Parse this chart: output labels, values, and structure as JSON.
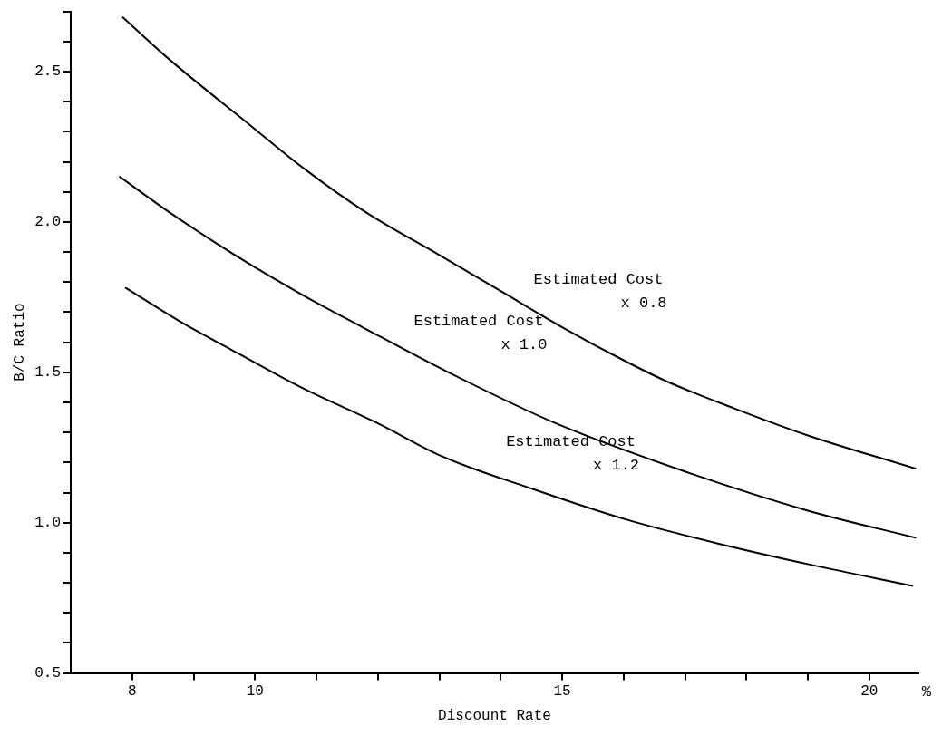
{
  "chart_data": {
    "type": "line",
    "xlabel": "Discount Rate",
    "ylabel": "B/C Ratio",
    "xlim": [
      7,
      20.8
    ],
    "ylim": [
      0.5,
      2.7
    ],
    "xticks": [
      8,
      {
        "value": 9,
        "label": null
      },
      10,
      {
        "value": 11,
        "label": null
      },
      {
        "value": 12,
        "label": null
      },
      {
        "value": 13,
        "label": null
      },
      {
        "value": 14,
        "label": null
      },
      15,
      {
        "value": 16,
        "label": null
      },
      {
        "value": 17,
        "label": null
      },
      {
        "value": 18,
        "label": null
      },
      {
        "value": 19,
        "label": null
      },
      20
    ],
    "yticks": [
      0.5,
      {
        "value": 0.6,
        "label": null
      },
      {
        "value": 0.7,
        "label": null
      },
      {
        "value": 0.8,
        "label": null
      },
      {
        "value": 0.9,
        "label": null
      },
      {
        "value": 1,
        "label": "1.0"
      },
      {
        "value": 1.1,
        "label": null
      },
      {
        "value": 1.2,
        "label": null
      },
      {
        "value": 1.3,
        "label": null
      },
      {
        "value": 1.4,
        "label": null
      },
      1.5,
      {
        "value": 1.6,
        "label": null
      },
      {
        "value": 1.7,
        "label": null
      },
      {
        "value": 1.8,
        "label": null
      },
      {
        "value": 1.9,
        "label": null
      },
      {
        "value": 2,
        "label": "2.0"
      },
      {
        "value": 2.1,
        "label": null
      },
      {
        "value": 2.2,
        "label": null
      },
      {
        "value": 2.3,
        "label": null
      },
      {
        "value": 2.4,
        "label": null
      },
      2.5,
      {
        "value": 2.6,
        "label": null
      },
      {
        "value": 2.7,
        "label": null
      }
    ],
    "grid": false,
    "legend": false,
    "marker": "none",
    "line_style": "solid",
    "series": [
      {
        "name": "Estimated Cost x 0.8",
        "color": "#000000",
        "x": [
          7.85,
          8.55,
          9.93,
          10.78,
          11.82,
          13.0,
          14.0,
          15.0,
          16.0,
          16.7,
          17.8,
          19.0,
          20.75
        ],
        "values": [
          2.68,
          2.55,
          2.32,
          2.18,
          2.03,
          1.89,
          1.77,
          1.65,
          1.54,
          1.47,
          1.38,
          1.29,
          1.18
        ]
      },
      {
        "name": "Estimated Cost x 1.0",
        "color": "#000000",
        "x": [
          7.8,
          8.55,
          9.75,
          10.75,
          11.75,
          13.05,
          14.9,
          17.0,
          19.0,
          20.75
        ],
        "values": [
          2.15,
          2.04,
          1.88,
          1.76,
          1.65,
          1.51,
          1.33,
          1.17,
          1.04,
          0.95
        ]
      },
      {
        "name": "Estimated Cost x 1.2",
        "color": "#000000",
        "x": [
          7.9,
          8.77,
          9.75,
          10.75,
          12.0,
          13.05,
          14.55,
          16.05,
          17.55,
          19.05,
          20.7
        ],
        "values": [
          1.78,
          1.67,
          1.56,
          1.45,
          1.33,
          1.22,
          1.11,
          1.01,
          0.93,
          0.86,
          0.79
        ]
      }
    ],
    "annotations": [
      "%"
    ]
  }
}
